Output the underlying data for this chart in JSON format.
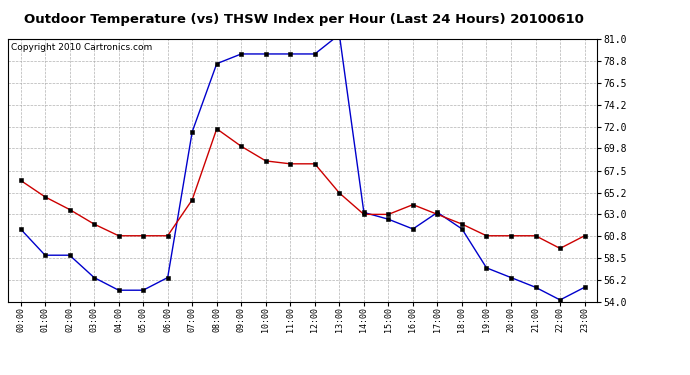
{
  "title": "Outdoor Temperature (vs) THSW Index per Hour (Last 24 Hours) 20100610",
  "copyright": "Copyright 2010 Cartronics.com",
  "hours": [
    "00:00",
    "01:00",
    "02:00",
    "03:00",
    "04:00",
    "05:00",
    "06:00",
    "07:00",
    "08:00",
    "09:00",
    "10:00",
    "11:00",
    "12:00",
    "13:00",
    "14:00",
    "15:00",
    "16:00",
    "17:00",
    "18:00",
    "19:00",
    "20:00",
    "21:00",
    "22:00",
    "23:00"
  ],
  "temp_red": [
    66.5,
    64.8,
    63.5,
    62.0,
    60.8,
    60.8,
    60.8,
    64.5,
    71.8,
    70.0,
    68.5,
    68.2,
    68.2,
    65.2,
    63.0,
    63.0,
    64.0,
    63.0,
    62.0,
    60.8,
    60.8,
    60.8,
    59.5,
    60.8
  ],
  "thsw_blue": [
    61.5,
    58.8,
    58.8,
    56.5,
    55.2,
    55.2,
    56.5,
    71.5,
    78.5,
    79.5,
    79.5,
    79.5,
    79.5,
    81.5,
    63.2,
    62.5,
    61.5,
    63.2,
    61.5,
    57.5,
    56.5,
    55.5,
    54.2,
    55.5
  ],
  "ylim_min": 54.0,
  "ylim_max": 81.0,
  "yticks": [
    54.0,
    56.2,
    58.5,
    60.8,
    63.0,
    65.2,
    67.5,
    69.8,
    72.0,
    74.2,
    76.5,
    78.8,
    81.0
  ],
  "red_color": "#cc0000",
  "blue_color": "#0000cc",
  "bg_color": "#ffffff",
  "plot_bg_color": "#ffffff",
  "grid_color": "#aaaaaa",
  "title_fontsize": 9.5,
  "copyright_fontsize": 6.5
}
